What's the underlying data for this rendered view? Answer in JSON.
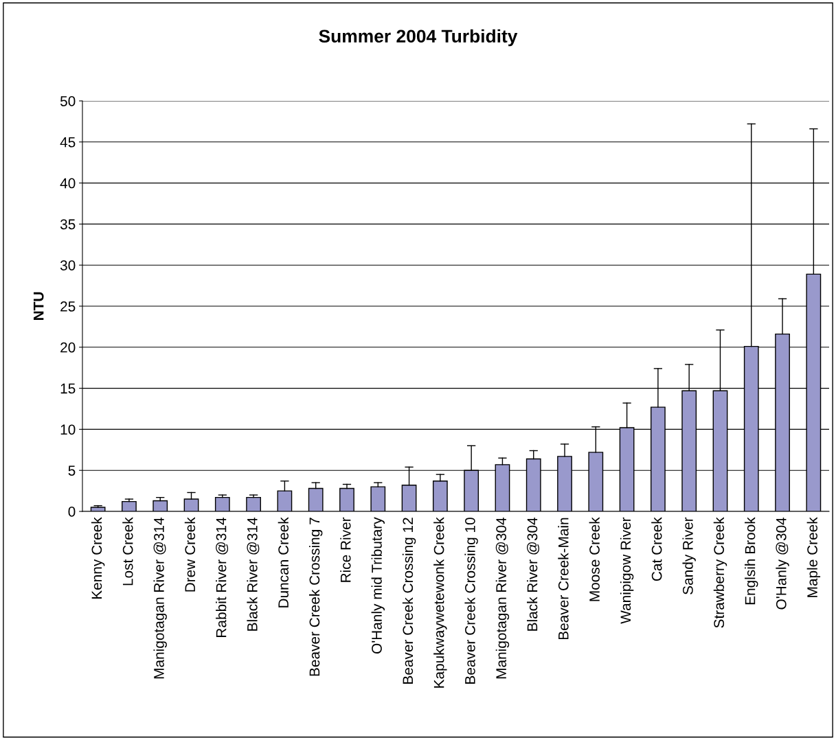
{
  "chart_data": {
    "type": "bar",
    "title": "Summer 2004 Turbidity",
    "ylabel": "NTU",
    "categories": [
      "Kenny Creek",
      "Lost Creek",
      "Manigotagan River @314",
      "Drew Creek",
      "Rabbit River @314",
      "Black River @314",
      "Duncan Creek",
      "Beaver Creek Crossing 7",
      "Rice River",
      "O'Hanly mid Tributary",
      "Beaver Creek Crossing 12",
      "Kapukwaywetewonk Creek",
      "Beaver Creek Crossing 10",
      "Manigotagan River @304",
      "Black River @304",
      "Beaver Creek-Main",
      "Moose Creek",
      "Wanipigow River",
      "Cat Creek",
      "Sandy River",
      "Strawberry Creek",
      "Englsih Brook",
      "O'Hanly @304",
      "Maple Creek"
    ],
    "values": [
      0.5,
      1.2,
      1.3,
      1.5,
      1.7,
      1.7,
      2.5,
      2.8,
      2.8,
      3.0,
      3.2,
      3.7,
      5.0,
      5.7,
      6.4,
      6.7,
      7.2,
      10.2,
      12.7,
      14.7,
      14.7,
      20.1,
      21.6,
      28.9
    ],
    "errors": [
      [
        0.5,
        0.7
      ],
      [
        1.2,
        1.5
      ],
      [
        1.3,
        1.7
      ],
      [
        1.5,
        2.3
      ],
      [
        1.7,
        2.0
      ],
      [
        1.7,
        2.0
      ],
      [
        2.5,
        3.7
      ],
      [
        2.8,
        3.5
      ],
      [
        2.8,
        3.3
      ],
      [
        3.0,
        3.5
      ],
      [
        3.2,
        5.4
      ],
      [
        3.7,
        4.5
      ],
      [
        5.0,
        8.0
      ],
      [
        5.7,
        6.5
      ],
      [
        6.4,
        7.4
      ],
      [
        6.7,
        8.2
      ],
      [
        7.2,
        10.3
      ],
      [
        10.2,
        13.2
      ],
      [
        12.7,
        17.4
      ],
      [
        14.7,
        17.9
      ],
      [
        14.7,
        22.1
      ],
      [
        20.1,
        47.2
      ],
      [
        21.6,
        25.9
      ],
      [
        28.9,
        46.6
      ]
    ],
    "color": "#9999cc",
    "ylim": [
      0,
      50
    ],
    "yticks": [
      0,
      5,
      10,
      15,
      20,
      25,
      30,
      35,
      40,
      45,
      50
    ],
    "grid": "y",
    "legend": false
  }
}
